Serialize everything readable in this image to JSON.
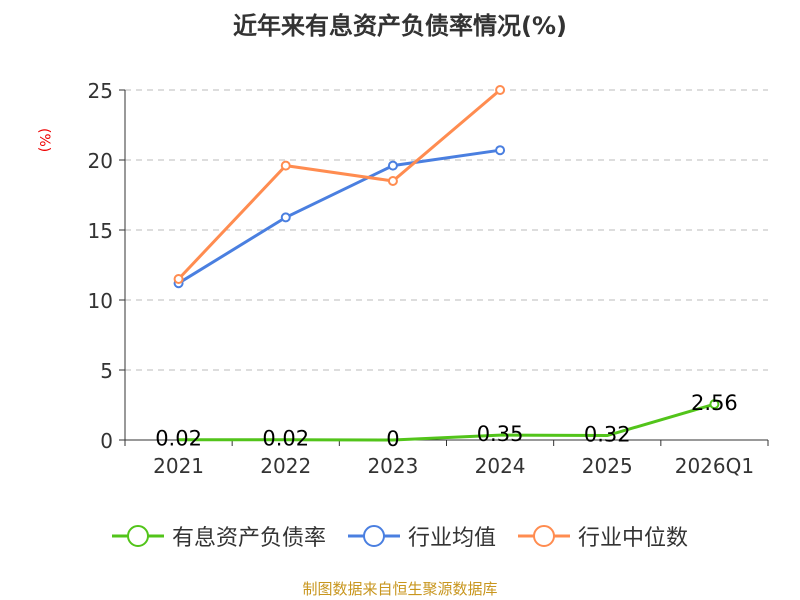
{
  "chart_data": {
    "type": "line",
    "title": "近年来有息资产负债率情况(%)",
    "ylabel": "(%)",
    "categories": [
      "2021",
      "2022",
      "2023",
      "2024",
      "2025",
      "2026Q1"
    ],
    "ylim": [
      0,
      25
    ],
    "yticks": [
      "0",
      "5",
      "10",
      "15",
      "20",
      "25"
    ],
    "grid": true,
    "legend_position": "bottom",
    "series": [
      {
        "name": "有息资产负债率",
        "color": "#52c41a",
        "values": [
          0.02,
          0.02,
          0,
          0.35,
          0.32,
          2.56
        ],
        "labels": [
          "0.02",
          "0.02",
          "0",
          "0.35",
          "0.32",
          "2.56"
        ]
      },
      {
        "name": "行业均值",
        "color": "#4a7fe0",
        "values": [
          11.2,
          15.9,
          19.6,
          20.7,
          null,
          null
        ]
      },
      {
        "name": "行业中位数",
        "color": "#ff8c50",
        "values": [
          11.5,
          19.6,
          18.5,
          25.0,
          null,
          null
        ]
      }
    ]
  },
  "source": "制图数据来自恒生聚源数据库"
}
